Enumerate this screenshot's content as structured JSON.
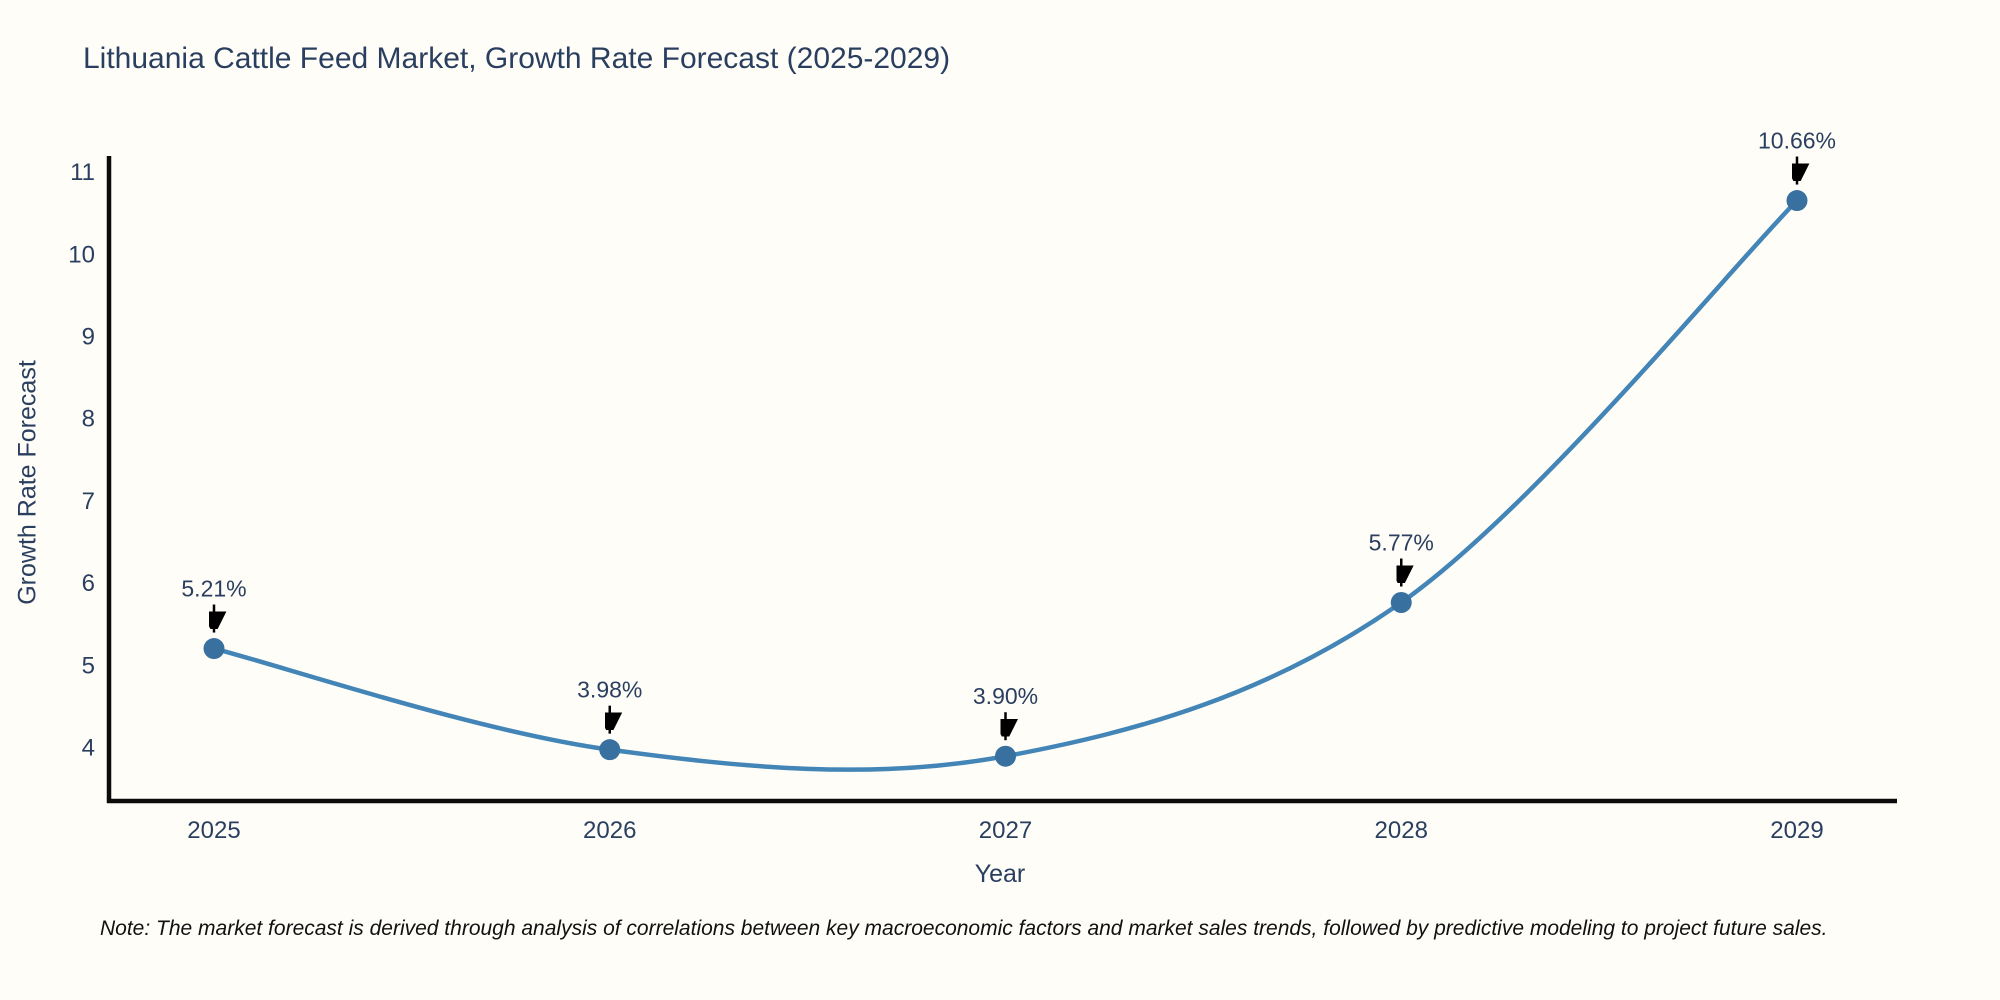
{
  "page": {
    "background_color": "#fffdf8"
  },
  "chart_data": {
    "type": "line",
    "title": "Lithuania Cattle Feed Market, Growth Rate Forecast (2025-2029)",
    "xlabel": "Year",
    "ylabel": "Growth Rate Forecast",
    "categories": [
      "2025",
      "2026",
      "2027",
      "2028",
      "2029"
    ],
    "values": [
      5.21,
      3.98,
      3.9,
      5.77,
      10.66
    ],
    "point_labels": [
      "5.21%",
      "3.98%",
      "3.90%",
      "5.77%",
      "10.66%"
    ],
    "yticks": [
      4,
      5,
      6,
      7,
      8,
      9,
      10,
      11
    ],
    "ylim": [
      3.35,
      11.25
    ],
    "line_shape": "spline",
    "grid": false,
    "legend": "none",
    "colors": {
      "line": "#4285b6",
      "marker": "#38719f",
      "axis": "#0b0b0b",
      "text": "#2a3f5f",
      "annotation_arrow": "#000000"
    }
  },
  "note": "Note: The market forecast is derived through analysis of correlations between key macroeconomic factors and market sales trends, followed by predictive modeling to project future sales."
}
